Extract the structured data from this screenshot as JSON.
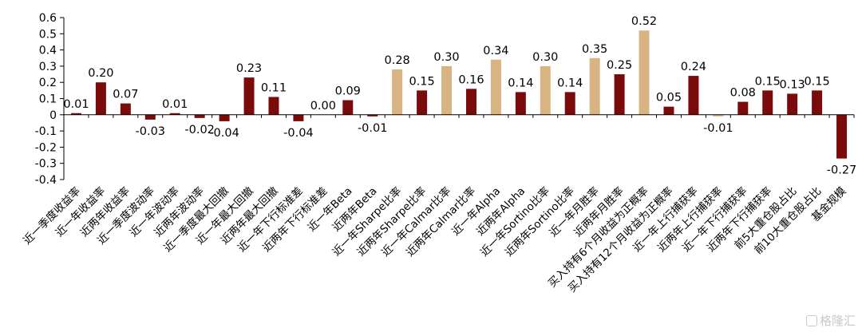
{
  "chart_data": {
    "type": "bar",
    "title": "",
    "xlabel": "",
    "ylabel": "",
    "ylim": [
      -0.4,
      0.6
    ],
    "yticks": [
      0.6,
      0.5,
      0.4,
      0.3,
      0.2,
      0.1,
      0,
      -0.1,
      -0.2,
      -0.3,
      -0.4
    ],
    "ytick_labels": [
      "0.6",
      "0.5",
      "0.4",
      "0.3",
      "0.2",
      "0.1",
      "0",
      "-0.1",
      "-0.2",
      "-0.3",
      "-0.4"
    ],
    "grid": false,
    "legend": "none",
    "colors": {
      "default": "#7b0a0a",
      "highlight": "#d9b483"
    },
    "categories": [
      "近一季度收益率",
      "近一年收益率",
      "近两年收益率",
      "近一季度波动率",
      "近一年波动率",
      "近两年波动率",
      "近一季度最大回撤",
      "近一年最大回撤",
      "近两年最大回撤",
      "近一年下行标准差",
      "近两年下行标准差",
      "近一年Beta",
      "近两年Beta",
      "近一年Sharpe比率",
      "近两年Sharpe比率",
      "近一年Calmar比率",
      "近两年Calmar比率",
      "近一年Alpha",
      "近两年Alpha",
      "近一年Sortino比率",
      "近两年Sortino比率",
      "近一年月胜率",
      "近两年月胜率",
      "买入持有6个月收益为正概率",
      "买入持有12个月收益为正概率",
      "近一年上行捕获率",
      "近两年上行捕获率",
      "近一年下行捕获率",
      "近两年下行捕获率",
      "前5大重仓股占比",
      "前10大重仓股占比",
      "基金规模"
    ],
    "values": [
      0.01,
      0.2,
      0.07,
      -0.03,
      0.01,
      -0.02,
      -0.04,
      0.23,
      0.11,
      -0.04,
      0.0,
      0.09,
      -0.01,
      0.28,
      0.15,
      0.3,
      0.16,
      0.34,
      0.14,
      0.3,
      0.14,
      0.35,
      0.25,
      0.52,
      0.05,
      0.24,
      -0.01,
      0.08,
      0.15,
      0.13,
      0.15,
      -0.27
    ],
    "value_labels": [
      "0.01",
      "0.20",
      "0.07",
      "-0.03",
      "0.01",
      "-0.02",
      "-0.04",
      "0.23",
      "0.11",
      "-0.04",
      "0.00",
      "0.09",
      "-0.01",
      "0.28",
      "0.15",
      "0.30",
      "0.16",
      "0.34",
      "0.14",
      "0.30",
      "0.14",
      "0.35",
      "0.25",
      "0.52",
      "0.05",
      "0.24",
      "-0.01",
      "0.08",
      "0.15",
      "0.13",
      "0.15",
      "-0.27"
    ],
    "highlight": [
      false,
      false,
      false,
      false,
      false,
      false,
      false,
      false,
      false,
      false,
      false,
      false,
      false,
      true,
      false,
      true,
      false,
      true,
      false,
      true,
      false,
      true,
      false,
      true,
      false,
      false,
      true,
      false,
      false,
      false,
      false,
      false
    ]
  },
  "watermark": {
    "text": "格隆汇"
  }
}
